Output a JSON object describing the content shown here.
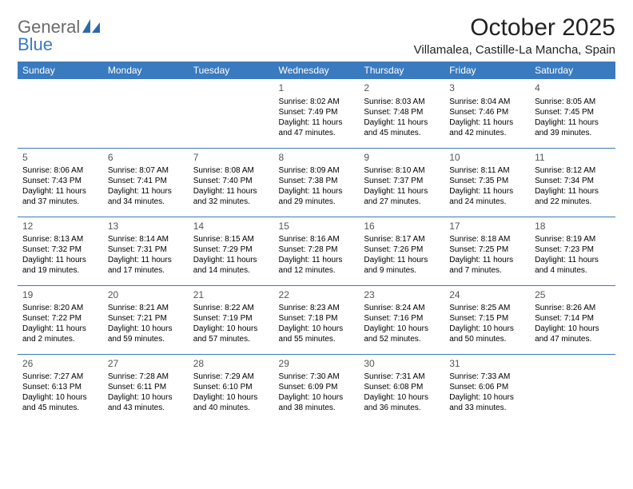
{
  "brand": {
    "text1": "General",
    "text2": "Blue"
  },
  "title": "October 2025",
  "location": "Villamalea, Castille-La Mancha, Spain",
  "colors": {
    "header_bg": "#3a7abf",
    "header_text": "#ffffff",
    "rule": "#3a7abf",
    "body_text": "#000000",
    "daynum_text": "#555555",
    "brand_gray": "#6b6b6b",
    "brand_blue": "#3a7abf",
    "page_bg": "#ffffff"
  },
  "typography": {
    "title_fontsize_pt": 22,
    "location_fontsize_pt": 11,
    "day_header_fontsize_pt": 9,
    "cell_fontsize_pt": 7.5,
    "daynum_fontsize_pt": 9
  },
  "day_headers": [
    "Sunday",
    "Monday",
    "Tuesday",
    "Wednesday",
    "Thursday",
    "Friday",
    "Saturday"
  ],
  "weeks": [
    [
      null,
      null,
      null,
      {
        "n": "1",
        "sr": "Sunrise: 8:02 AM",
        "ss": "Sunset: 7:49 PM",
        "dl": "Daylight: 11 hours and 47 minutes."
      },
      {
        "n": "2",
        "sr": "Sunrise: 8:03 AM",
        "ss": "Sunset: 7:48 PM",
        "dl": "Daylight: 11 hours and 45 minutes."
      },
      {
        "n": "3",
        "sr": "Sunrise: 8:04 AM",
        "ss": "Sunset: 7:46 PM",
        "dl": "Daylight: 11 hours and 42 minutes."
      },
      {
        "n": "4",
        "sr": "Sunrise: 8:05 AM",
        "ss": "Sunset: 7:45 PM",
        "dl": "Daylight: 11 hours and 39 minutes."
      }
    ],
    [
      {
        "n": "5",
        "sr": "Sunrise: 8:06 AM",
        "ss": "Sunset: 7:43 PM",
        "dl": "Daylight: 11 hours and 37 minutes."
      },
      {
        "n": "6",
        "sr": "Sunrise: 8:07 AM",
        "ss": "Sunset: 7:41 PM",
        "dl": "Daylight: 11 hours and 34 minutes."
      },
      {
        "n": "7",
        "sr": "Sunrise: 8:08 AM",
        "ss": "Sunset: 7:40 PM",
        "dl": "Daylight: 11 hours and 32 minutes."
      },
      {
        "n": "8",
        "sr": "Sunrise: 8:09 AM",
        "ss": "Sunset: 7:38 PM",
        "dl": "Daylight: 11 hours and 29 minutes."
      },
      {
        "n": "9",
        "sr": "Sunrise: 8:10 AM",
        "ss": "Sunset: 7:37 PM",
        "dl": "Daylight: 11 hours and 27 minutes."
      },
      {
        "n": "10",
        "sr": "Sunrise: 8:11 AM",
        "ss": "Sunset: 7:35 PM",
        "dl": "Daylight: 11 hours and 24 minutes."
      },
      {
        "n": "11",
        "sr": "Sunrise: 8:12 AM",
        "ss": "Sunset: 7:34 PM",
        "dl": "Daylight: 11 hours and 22 minutes."
      }
    ],
    [
      {
        "n": "12",
        "sr": "Sunrise: 8:13 AM",
        "ss": "Sunset: 7:32 PM",
        "dl": "Daylight: 11 hours and 19 minutes."
      },
      {
        "n": "13",
        "sr": "Sunrise: 8:14 AM",
        "ss": "Sunset: 7:31 PM",
        "dl": "Daylight: 11 hours and 17 minutes."
      },
      {
        "n": "14",
        "sr": "Sunrise: 8:15 AM",
        "ss": "Sunset: 7:29 PM",
        "dl": "Daylight: 11 hours and 14 minutes."
      },
      {
        "n": "15",
        "sr": "Sunrise: 8:16 AM",
        "ss": "Sunset: 7:28 PM",
        "dl": "Daylight: 11 hours and 12 minutes."
      },
      {
        "n": "16",
        "sr": "Sunrise: 8:17 AM",
        "ss": "Sunset: 7:26 PM",
        "dl": "Daylight: 11 hours and 9 minutes."
      },
      {
        "n": "17",
        "sr": "Sunrise: 8:18 AM",
        "ss": "Sunset: 7:25 PM",
        "dl": "Daylight: 11 hours and 7 minutes."
      },
      {
        "n": "18",
        "sr": "Sunrise: 8:19 AM",
        "ss": "Sunset: 7:23 PM",
        "dl": "Daylight: 11 hours and 4 minutes."
      }
    ],
    [
      {
        "n": "19",
        "sr": "Sunrise: 8:20 AM",
        "ss": "Sunset: 7:22 PM",
        "dl": "Daylight: 11 hours and 2 minutes."
      },
      {
        "n": "20",
        "sr": "Sunrise: 8:21 AM",
        "ss": "Sunset: 7:21 PM",
        "dl": "Daylight: 10 hours and 59 minutes."
      },
      {
        "n": "21",
        "sr": "Sunrise: 8:22 AM",
        "ss": "Sunset: 7:19 PM",
        "dl": "Daylight: 10 hours and 57 minutes."
      },
      {
        "n": "22",
        "sr": "Sunrise: 8:23 AM",
        "ss": "Sunset: 7:18 PM",
        "dl": "Daylight: 10 hours and 55 minutes."
      },
      {
        "n": "23",
        "sr": "Sunrise: 8:24 AM",
        "ss": "Sunset: 7:16 PM",
        "dl": "Daylight: 10 hours and 52 minutes."
      },
      {
        "n": "24",
        "sr": "Sunrise: 8:25 AM",
        "ss": "Sunset: 7:15 PM",
        "dl": "Daylight: 10 hours and 50 minutes."
      },
      {
        "n": "25",
        "sr": "Sunrise: 8:26 AM",
        "ss": "Sunset: 7:14 PM",
        "dl": "Daylight: 10 hours and 47 minutes."
      }
    ],
    [
      {
        "n": "26",
        "sr": "Sunrise: 7:27 AM",
        "ss": "Sunset: 6:13 PM",
        "dl": "Daylight: 10 hours and 45 minutes."
      },
      {
        "n": "27",
        "sr": "Sunrise: 7:28 AM",
        "ss": "Sunset: 6:11 PM",
        "dl": "Daylight: 10 hours and 43 minutes."
      },
      {
        "n": "28",
        "sr": "Sunrise: 7:29 AM",
        "ss": "Sunset: 6:10 PM",
        "dl": "Daylight: 10 hours and 40 minutes."
      },
      {
        "n": "29",
        "sr": "Sunrise: 7:30 AM",
        "ss": "Sunset: 6:09 PM",
        "dl": "Daylight: 10 hours and 38 minutes."
      },
      {
        "n": "30",
        "sr": "Sunrise: 7:31 AM",
        "ss": "Sunset: 6:08 PM",
        "dl": "Daylight: 10 hours and 36 minutes."
      },
      {
        "n": "31",
        "sr": "Sunrise: 7:33 AM",
        "ss": "Sunset: 6:06 PM",
        "dl": "Daylight: 10 hours and 33 minutes."
      },
      null
    ]
  ]
}
